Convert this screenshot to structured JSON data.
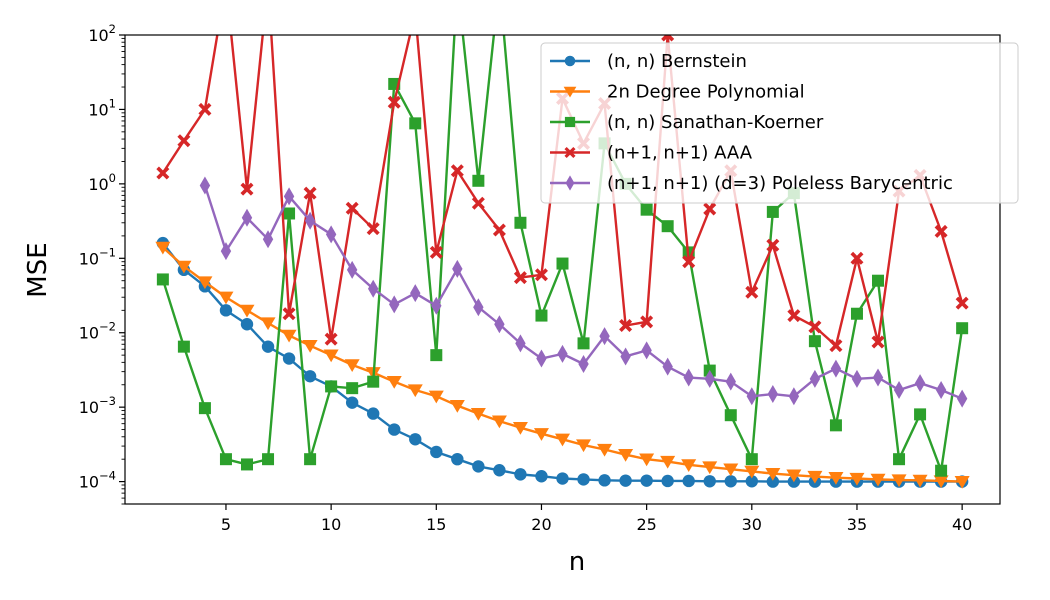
{
  "chart_data": {
    "type": "line",
    "title": "",
    "xlabel": "n",
    "ylabel": "MSE",
    "xlim": [
      0.2,
      41.8
    ],
    "ylim": [
      5e-05,
      100
    ],
    "y_scale": "log",
    "grid": false,
    "legend_position": "top-right",
    "x_ticks": [
      {
        "value": 5,
        "label": "5"
      },
      {
        "value": 10,
        "label": "10"
      },
      {
        "value": 15,
        "label": "15"
      },
      {
        "value": 20,
        "label": "20"
      },
      {
        "value": 25,
        "label": "25"
      },
      {
        "value": 30,
        "label": "30"
      },
      {
        "value": 35,
        "label": "35"
      },
      {
        "value": 40,
        "label": "40"
      }
    ],
    "y_ticks": [
      {
        "value": 0.0001,
        "mantissa": "10",
        "exp": "−4"
      },
      {
        "value": 0.001,
        "mantissa": "10",
        "exp": "−3"
      },
      {
        "value": 0.01,
        "mantissa": "10",
        "exp": "−2"
      },
      {
        "value": 0.1,
        "mantissa": "10",
        "exp": "−1"
      },
      {
        "value": 1,
        "mantissa": "10",
        "exp": "0"
      },
      {
        "value": 10,
        "mantissa": "10",
        "exp": "1"
      },
      {
        "value": 100,
        "mantissa": "10",
        "exp": "2"
      }
    ],
    "series": [
      {
        "name": "(n, n) Bernstein",
        "color": "#1f77b4",
        "marker": "circle",
        "x": [
          2,
          3,
          4,
          5,
          6,
          7,
          8,
          9,
          10,
          11,
          12,
          13,
          14,
          15,
          16,
          17,
          18,
          19,
          20,
          21,
          22,
          23,
          24,
          25,
          26,
          27,
          28,
          29,
          30,
          31,
          32,
          33,
          34,
          35,
          36,
          37,
          38,
          39,
          40
        ],
        "y": [
          0.16,
          0.07,
          0.042,
          0.02,
          0.013,
          0.0065,
          0.0045,
          0.0026,
          0.0019,
          0.00115,
          0.00082,
          0.0005,
          0.00037,
          0.00025,
          0.0002,
          0.00016,
          0.000142,
          0.000125,
          0.000118,
          0.00011,
          0.000107,
          0.000104,
          0.000103,
          0.000103,
          0.000102,
          0.000102,
          0.000101,
          0.000101,
          0.000101,
          0.0001,
          0.0001,
          0.0001,
          0.0001,
          0.0001,
          0.0001,
          0.0001,
          0.0001,
          0.0001,
          0.0001
        ]
      },
      {
        "name": "2n Degree Polynomial",
        "color": "#ff7f0e",
        "marker": "triangle-down",
        "x": [
          2,
          3,
          4,
          5,
          6,
          7,
          8,
          9,
          10,
          11,
          12,
          13,
          14,
          15,
          16,
          17,
          18,
          19,
          20,
          21,
          22,
          23,
          24,
          25,
          26,
          27,
          28,
          29,
          30,
          31,
          32,
          33,
          34,
          35,
          36,
          37,
          38,
          39,
          40
        ],
        "y": [
          0.14,
          0.078,
          0.048,
          0.03,
          0.02,
          0.0135,
          0.0092,
          0.0067,
          0.005,
          0.0037,
          0.0029,
          0.0022,
          0.0017,
          0.0014,
          0.00105,
          0.00082,
          0.00065,
          0.00053,
          0.00044,
          0.00037,
          0.00031,
          0.00027,
          0.00023,
          0.0002,
          0.000186,
          0.000168,
          0.000157,
          0.000147,
          0.000137,
          0.000128,
          0.000122,
          0.000117,
          0.000113,
          0.00011,
          0.000107,
          0.000105,
          0.000104,
          0.000102,
          0.0001
        ]
      },
      {
        "name": "(n, n) Sanathan-Koerner",
        "color": "#2ca02c",
        "marker": "square",
        "x": [
          2,
          3,
          4,
          5,
          6,
          7,
          8,
          9,
          10,
          11,
          12,
          13,
          14,
          15,
          16,
          17,
          18,
          19,
          20,
          21,
          22,
          23,
          24,
          25,
          26,
          27,
          28,
          29,
          30,
          31,
          32,
          33,
          34,
          35,
          36,
          37,
          38,
          39,
          40
        ],
        "y": [
          0.052,
          0.0065,
          0.00097,
          0.0002,
          0.00017,
          0.0002,
          0.4,
          0.0002,
          0.0019,
          0.0018,
          0.0022,
          22,
          6.5,
          0.005,
          500,
          1.1,
          500,
          0.3,
          0.017,
          0.085,
          0.0072,
          3.5,
          1.0,
          0.45,
          0.27,
          0.12,
          0.0031,
          0.00078,
          0.0002,
          0.42,
          0.75,
          0.0077,
          0.00057,
          0.018,
          0.05,
          0.0002,
          0.0008,
          0.00014,
          0.0115
        ]
      },
      {
        "name": "(n+1, n+1) AAA",
        "color": "#d62728",
        "marker": "x-filled",
        "x": [
          2,
          3,
          4,
          5,
          6,
          7,
          8,
          9,
          10,
          11,
          12,
          13,
          14,
          15,
          16,
          17,
          18,
          19,
          20,
          21,
          22,
          23,
          24,
          25,
          26,
          27,
          28,
          29,
          30,
          31,
          32,
          33,
          34,
          35,
          36,
          37,
          38,
          39,
          40
        ],
        "y": [
          1.4,
          3.8,
          10,
          500,
          0.85,
          500,
          0.018,
          0.75,
          0.0082,
          0.47,
          0.25,
          12.5,
          200,
          0.12,
          1.5,
          0.55,
          0.24,
          0.055,
          0.06,
          14,
          3.5,
          12,
          0.0125,
          0.014,
          100,
          0.09,
          0.46,
          1.5,
          0.035,
          0.15,
          0.017,
          0.012,
          0.0067,
          0.1,
          0.0075,
          0.8,
          1.3,
          0.23,
          0.025
        ]
      },
      {
        "name": "(n+1, n+1) (d=3) Poleless Barycentric",
        "color": "#9467bd",
        "marker": "thin-diamond",
        "x": [
          4,
          5,
          6,
          7,
          8,
          9,
          10,
          11,
          12,
          13,
          14,
          15,
          16,
          17,
          18,
          19,
          20,
          21,
          22,
          23,
          24,
          25,
          26,
          27,
          28,
          29,
          30,
          31,
          32,
          33,
          34,
          35,
          36,
          37,
          38,
          39,
          40
        ],
        "y": [
          0.95,
          0.125,
          0.35,
          0.18,
          0.68,
          0.32,
          0.21,
          0.07,
          0.039,
          0.024,
          0.034,
          0.023,
          0.072,
          0.022,
          0.013,
          0.0072,
          0.0045,
          0.0052,
          0.0038,
          0.009,
          0.0048,
          0.0058,
          0.0035,
          0.0025,
          0.0024,
          0.0022,
          0.0014,
          0.0015,
          0.0014,
          0.0024,
          0.0033,
          0.0024,
          0.0025,
          0.0017,
          0.0021,
          0.0017,
          0.0013
        ]
      }
    ]
  }
}
